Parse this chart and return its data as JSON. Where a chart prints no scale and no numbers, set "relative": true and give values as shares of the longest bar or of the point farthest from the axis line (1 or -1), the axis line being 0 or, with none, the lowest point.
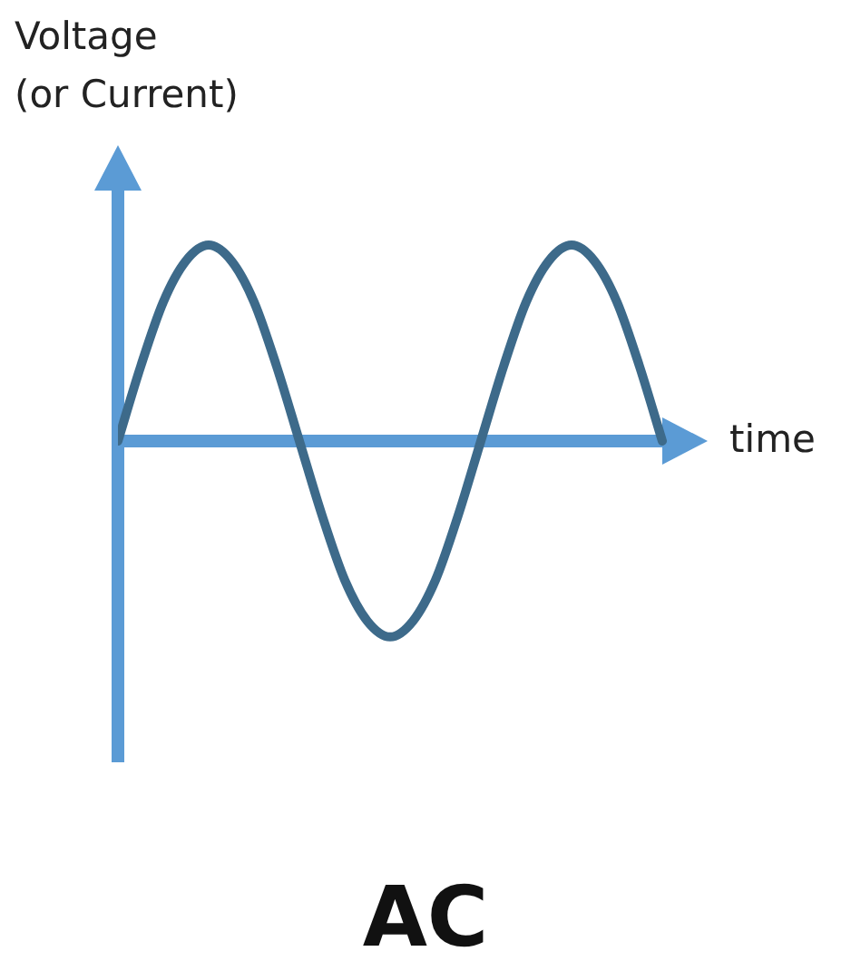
{
  "chart_data": {
    "type": "line",
    "title": "AC",
    "xlabel": "time",
    "ylabel": "Voltage\n(or Current)",
    "relative": true,
    "ref_lines": [
      {
        "axis": "y",
        "value": 0,
        "color": "#5b9bd5"
      }
    ],
    "categories": [
      null,
      null,
      null,
      null,
      null,
      null,
      null,
      null,
      null,
      null,
      null,
      null,
      null,
      null,
      null,
      null,
      null,
      null,
      null,
      null,
      null,
      null,
      null,
      null,
      null
    ],
    "series": [
      {
        "color": "#3d6a8a",
        "values": [
          0,
          0.38,
          0.71,
          0.92,
          1,
          0.92,
          0.71,
          0.38,
          0,
          -0.38,
          -0.71,
          -0.92,
          -1,
          -0.92,
          -0.71,
          -0.38,
          0,
          0.38,
          0.71,
          0.92,
          1,
          0.92,
          0.71,
          0.38,
          0
        ]
      }
    ]
  }
}
